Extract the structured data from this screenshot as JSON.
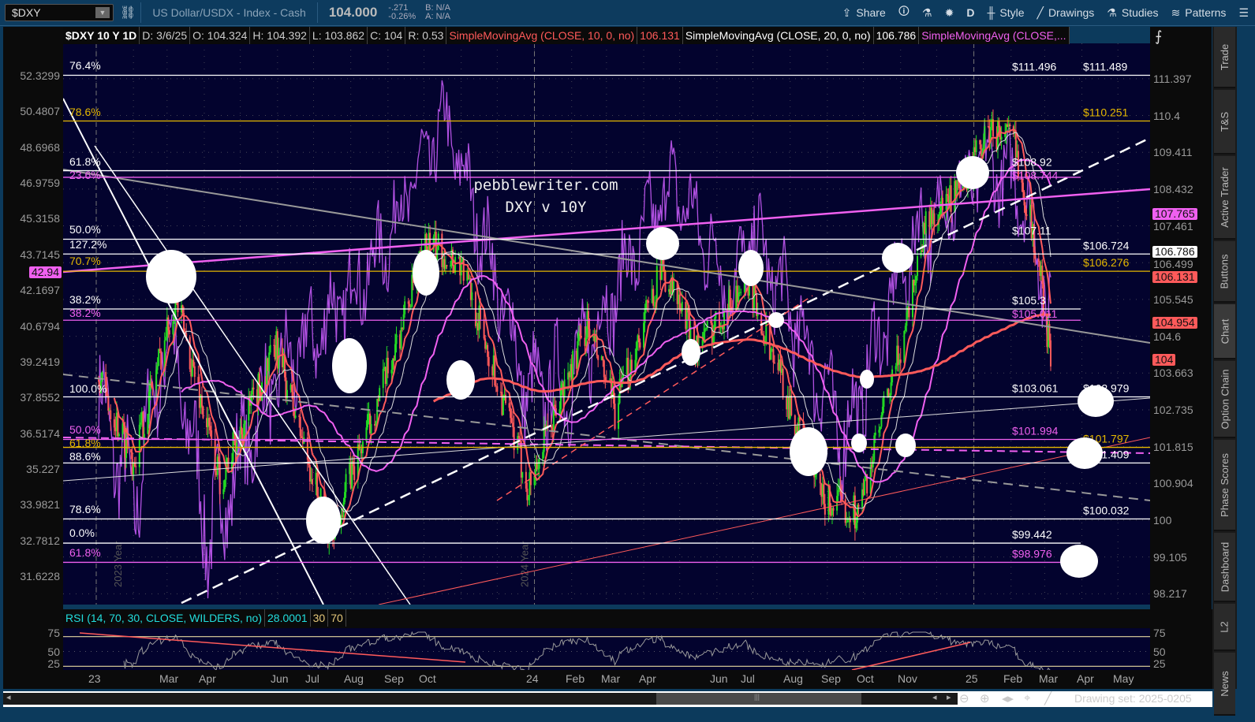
{
  "toolbar": {
    "symbol": "$DXY",
    "description": "US Dollar/USDX - Index - Cash",
    "last": "104.000",
    "change": "-.271",
    "change_pct": "-0.26%",
    "bid": "B: N/A",
    "ask": "A: N/A",
    "share": "Share",
    "period": "D",
    "style": "Style",
    "drawings": "Drawings",
    "studies": "Studies",
    "patterns": "Patterns"
  },
  "infobar": {
    "title": "$DXY 10 Y 1D",
    "date": "D: 3/6/25",
    "open": "O: 104.324",
    "high": "H: 104.392",
    "low": "L: 103.862",
    "close": "C: 104",
    "range": "R: 0.53",
    "sma10": "SimpleMovingAvg (CLOSE, 10, 0, no)",
    "sma10_val": "106.131",
    "sma20": "SimpleMovingAvg (CLOSE, 20, 0, no)",
    "sma20_val": "106.786",
    "sma3": "SimpleMovingAvg (CLOSE,..."
  },
  "annotation": {
    "line1": "pebblewriter.com",
    "line2": "DXY v 10Y"
  },
  "right_axis": [
    "111.397",
    "110.4",
    "109.411",
    "108.432",
    "107.461",
    "106.499",
    "105.545",
    "104.6",
    "103.663",
    "102.735",
    "101.815",
    "100.904",
    "100",
    "99.105",
    "98.217"
  ],
  "left_axis": [
    "52.3299",
    "50.4807",
    "48.6968",
    "46.9759",
    "45.3158",
    "43.7145",
    "42.1697",
    "40.6794",
    "39.2419",
    "37.8552",
    "36.5174",
    "35.227",
    "33.9821",
    "32.7812",
    "31.6228"
  ],
  "badges": {
    "b1": "107.765",
    "b2": "106.786",
    "b3": "106.131",
    "b4": "104.954",
    "b5": "104",
    "left": "42.94"
  },
  "colors": {
    "background": "#03032e",
    "bull": "#22dd22",
    "bear": "#ff5a5a",
    "sma_red": "#ff5a5a",
    "sma_magenta": "#f060f0",
    "fib_yellow": "#e6b800",
    "ten_year": "#b050e0"
  },
  "levels": [
    {
      "price": 111.49,
      "label": "$111.496",
      "label2": "$111.489",
      "color": "#ffffff"
    },
    {
      "price": 110.251,
      "label": "",
      "label2": "$110.251",
      "color": "#e6b800"
    },
    {
      "price": 108.92,
      "label": "$108.92",
      "label2": "",
      "color": "#ffffff"
    },
    {
      "price": 108.744,
      "label": "$108.744",
      "label2": "",
      "color": "#f060f0"
    },
    {
      "price": 107.11,
      "label": "$107.11",
      "label2": "",
      "color": "#ffffff"
    },
    {
      "price": 106.724,
      "label": "",
      "label2": "$106.724",
      "color": "#ffffff"
    },
    {
      "price": 106.276,
      "label": "",
      "label2": "$106.276",
      "color": "#e6b800"
    },
    {
      "price": 105.3,
      "label": "$105.3",
      "label2": "",
      "color": "#ffffff"
    },
    {
      "price": 105.011,
      "label": "$105.011",
      "label2": "",
      "color": "#f060f0"
    },
    {
      "price": 103.061,
      "label": "$103.061",
      "label2": "$102.979",
      "color": "#ffffff"
    },
    {
      "price": 101.994,
      "label": "$101.994",
      "label2": "",
      "color": "#f060f0"
    },
    {
      "price": 101.797,
      "label": "",
      "label2": "$101.797",
      "color": "#e6b800"
    },
    {
      "price": 101.409,
      "label": "",
      "label2": "$101.409",
      "color": "#ffffff"
    },
    {
      "price": 100.032,
      "label": "",
      "label2": "$100.032",
      "color": "#ffffff"
    },
    {
      "price": 99.442,
      "label": "$99.442",
      "label2": "",
      "color": "#ffffff"
    },
    {
      "price": 98.976,
      "label": "$98.976",
      "label2": "",
      "color": "#f060f0"
    }
  ],
  "fib_labels": [
    {
      "text": "76.4%",
      "color": "#ffffff"
    },
    {
      "text": "78.6%",
      "color": "#e6b800"
    },
    {
      "text": "61.8%",
      "color": "#ffffff"
    },
    {
      "text": "23.6%",
      "color": "#f060f0"
    },
    {
      "text": "50.0%",
      "color": "#ffffff"
    },
    {
      "text": "127.2%",
      "color": "#ffffff"
    },
    {
      "text": "70.7%",
      "color": "#e6b800"
    },
    {
      "text": "38.2%",
      "color": "#ffffff"
    },
    {
      "text": "38.2%",
      "color": "#f060f0"
    },
    {
      "text": "100.0%",
      "color": "#ffffff"
    },
    {
      "text": "50.0%",
      "color": "#f060f0"
    },
    {
      "text": "61.8%",
      "color": "#e6b800"
    },
    {
      "text": "88.6%",
      "color": "#ffffff"
    },
    {
      "text": "78.6%",
      "color": "#ffffff"
    },
    {
      "text": "0.0%",
      "color": "#ffffff"
    },
    {
      "text": "61.8%",
      "color": "#f060f0"
    }
  ],
  "rsi": {
    "label": "RSI (14, 70, 30, CLOSE, WILDERS, no)",
    "value": "28.0001",
    "low": "30",
    "high": "70",
    "axis": [
      "75",
      "50",
      "25"
    ]
  },
  "time_axis": [
    "23",
    "Mar",
    "Apr",
    "Jun",
    "Jul",
    "Aug",
    "Sep",
    "Oct",
    "24",
    "Feb",
    "Mar",
    "Apr",
    "Jun",
    "Jul",
    "Aug",
    "Sep",
    "Oct",
    "Nov",
    "25",
    "Feb",
    "Mar",
    "Apr",
    "May"
  ],
  "year_marks": [
    "2023 Year",
    "2024 Year"
  ],
  "sidebar": [
    "Trade",
    "T&S",
    "Active Trader",
    "Buttons",
    "Chart",
    "Option Chain",
    "Phase Scores",
    "Dashboard",
    "L2",
    "News"
  ],
  "drawing_set": "Drawing set: 2025-0205",
  "chart_data": {
    "type": "line",
    "x_range": [
      "2023-01-01",
      "2025-05-31"
    ],
    "y_range_right": [
      98.217,
      111.397
    ],
    "y_range_left": [
      31.6228,
      52.3299
    ],
    "log_scale": true,
    "series": [
      {
        "axis": "right",
        "x": [
          "2023-01-03",
          "2023-02-01",
          "2023-03-08",
          "2023-04-14",
          "2023-05-31",
          "2023-07-14",
          "2023-08-31",
          "2023-10-03",
          "2023-11-01",
          "2023-12-27",
          "2024-02-14",
          "2024-03-08",
          "2024-04-16",
          "2024-05-16",
          "2024-06-26",
          "2024-08-27",
          "2024-09-27",
          "2024-11-01",
          "2024-11-22",
          "2024-12-20",
          "2025-01-13",
          "2025-02-03",
          "2025-02-25",
          "2025-03-06"
        ],
        "values": [
          103.5,
          101.5,
          105.6,
          101.0,
          104.3,
          99.6,
          103.6,
          107.0,
          106.5,
          100.8,
          104.9,
          102.7,
          106.4,
          104.3,
          106.1,
          100.5,
          100.2,
          104.3,
          107.6,
          108.3,
          110.0,
          109.8,
          106.3,
          104.0
        ]
      },
      {
        "axis": "left",
        "x": [
          "2023-01-03",
          "2023-02-01",
          "2023-03-02",
          "2023-04-05",
          "2023-05-26",
          "2023-07-07",
          "2023-08-21",
          "2023-10-19",
          "2023-12-27",
          "2024-02-01",
          "2024-04-25",
          "2024-06-14",
          "2024-07-01",
          "2024-09-16",
          "2024-11-14",
          "2025-01-13",
          "2025-02-12",
          "2025-03-04",
          "2025-03-06"
        ],
        "values": [
          37.9,
          34.0,
          40.5,
          32.9,
          38.2,
          40.6,
          43.4,
          49.9,
          37.9,
          38.6,
          47.0,
          42.2,
          44.7,
          36.2,
          44.5,
          48.0,
          46.5,
          41.5,
          42.9
        ]
      }
    ]
  }
}
